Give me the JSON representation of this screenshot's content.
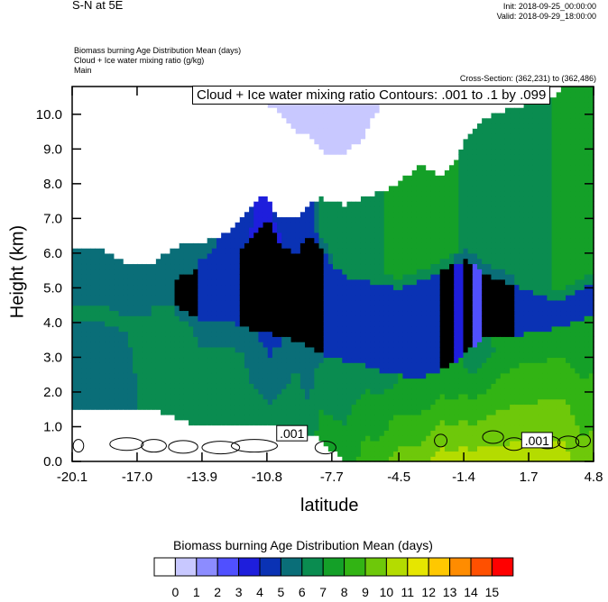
{
  "header": {
    "title": "S-N at 5E",
    "init": "Init: 2018-09-25_00:00:00",
    "valid": "Valid: 2018-09-29_18:00:00",
    "field1": "Biomass burning Age Distribution Mean   (days)",
    "field2": "Cloud + Ice water mixing ratio   (g/kg)",
    "field3": "Main",
    "cross_section": "Cross-Section: (362,231) to (362,486)"
  },
  "chart_data": {
    "type": "heatmap",
    "title": "S-N at 5E",
    "xlabel": "latitude",
    "ylabel": "Height (km)",
    "xlim": [
      -20.1,
      4.8
    ],
    "ylim": [
      0.0,
      10.8
    ],
    "x_ticks": [
      "-20.1",
      "-17.0",
      "-13.9",
      "-10.8",
      "-7.7",
      "-4.5",
      "-1.4",
      "1.7",
      "4.8"
    ],
    "x_tick_values": [
      -20.1,
      -17.0,
      -13.9,
      -10.8,
      -7.7,
      -4.5,
      -1.4,
      1.7,
      4.8
    ],
    "y_ticks": [
      "0.0",
      "1.0",
      "2.0",
      "3.0",
      "4.0",
      "5.0",
      "6.0",
      "7.0",
      "8.0",
      "9.0",
      "10.0"
    ],
    "y_tick_values": [
      0,
      1,
      2,
      3,
      4,
      5,
      6,
      7,
      8,
      9,
      10
    ],
    "contour_info": "Cloud + Ice water mixing ratio Contours: .001 to .1 by .099",
    "contour_labels": [
      {
        "text": ".001",
        "lat": -9.6,
        "height": 0.8
      },
      {
        "text": ".001",
        "lat": 2.1,
        "height": 0.6
      }
    ],
    "colorbar": {
      "title": "Biomass burning Age Distribution Mean  (days)",
      "labels": [
        "0",
        "1",
        "2",
        "3",
        "4",
        "5",
        "6",
        "7",
        "8",
        "9",
        "10",
        "11",
        "12",
        "13",
        "14",
        "15"
      ],
      "colors": [
        "#ffffff",
        "#c8c8ff",
        "#8c8cff",
        "#5050ff",
        "#1e1edc",
        "#0a32b4",
        "#0a6e78",
        "#0a8c50",
        "#14a028",
        "#32b414",
        "#6ec80a",
        "#b4dc00",
        "#e6e600",
        "#ffc800",
        "#ff8c00",
        "#ff5000",
        "#ff0000"
      ]
    },
    "profiles": {
      "lat": [
        -20.1,
        -18.6,
        -17.5,
        -16.3,
        -15.2,
        -14.1,
        -13.0,
        -12.0,
        -11.2,
        -10.7,
        -10.2,
        -9.4,
        -8.8,
        -8.2,
        -7.7,
        -7.0,
        -6.1,
        -5.4,
        -4.5,
        -3.5,
        -2.5,
        -1.8,
        -1.4,
        -1.0,
        -0.6,
        0.0,
        1.0,
        1.7,
        2.6,
        3.4,
        4.2,
        4.8
      ],
      "base_age": [
        6,
        6,
        6,
        7,
        7,
        7,
        7,
        7,
        7,
        7,
        7,
        7,
        7,
        8,
        8,
        8,
        9,
        9,
        10,
        10,
        11,
        11,
        11,
        11,
        11,
        11,
        11,
        11,
        11,
        11,
        10,
        10
      ],
      "top_age": [
        5,
        6,
        6,
        6,
        6,
        6,
        5,
        5,
        4,
        4,
        5,
        5,
        5,
        7,
        8,
        8,
        8,
        8,
        9,
        9,
        9,
        9,
        8,
        8,
        8,
        8,
        8,
        8,
        8,
        9,
        9,
        9
      ],
      "floor_h": [
        1.5,
        1.5,
        1.5,
        1.5,
        1.3,
        1.0,
        1.0,
        1.0,
        1.0,
        1.0,
        1.0,
        1.0,
        0.8,
        0.6,
        0.3,
        0.0,
        0.0,
        0.0,
        0.0,
        0.0,
        0.0,
        0.0,
        0.0,
        0.0,
        0.0,
        0.0,
        0.0,
        0.0,
        0.0,
        0.0,
        0.0,
        0.0
      ],
      "layer_bottom": [
        4.5,
        4.5,
        4.2,
        4.2,
        4.2,
        3.8,
        3.8,
        3.6,
        3.4,
        3.4,
        3.3,
        3.2,
        3.0,
        2.8,
        2.7,
        2.6,
        2.5,
        2.3,
        2.2,
        2.1,
        2.3,
        2.6,
        2.8,
        3.0,
        3.2,
        3.3,
        3.3,
        3.4,
        3.5,
        3.6,
        3.8,
        4.0
      ],
      "layer_top": [
        5.8,
        5.8,
        5.6,
        5.6,
        5.6,
        5.8,
        6.2,
        6.4,
        7.0,
        7.3,
        6.6,
        6.3,
        6.8,
        6.4,
        6.0,
        5.6,
        5.5,
        5.4,
        5.3,
        5.5,
        5.8,
        6.0,
        6.1,
        6.0,
        5.8,
        5.6,
        5.4,
        5.2,
        5.0,
        5.0,
        5.3,
        5.5
      ],
      "layer_age": [
        6,
        6,
        6,
        6,
        6,
        5,
        5,
        5,
        4,
        3,
        4,
        5,
        4,
        5,
        5,
        5,
        5,
        5,
        5,
        5,
        5,
        4,
        4,
        3,
        3,
        4,
        5,
        5,
        5,
        5,
        5,
        5
      ],
      "cloud_bottom": [
        6.2,
        6.1,
        5.7,
        5.7,
        6.2,
        6.3,
        6.5,
        7.0,
        7.6,
        7.6,
        7.0,
        7.0,
        7.4,
        7.6,
        7.5,
        7.4,
        7.6,
        7.8,
        8.0,
        8.6,
        8.2,
        8.7,
        9.2,
        9.6,
        9.8,
        10.0,
        10.2,
        10.3,
        10.4,
        10.8,
        10.8,
        10.8
      ],
      "purple_top": [
        10.8,
        10.8,
        10.8,
        10.8,
        10.8,
        10.8,
        10.8,
        10.8,
        10.6,
        10.2,
        10.1,
        9.5,
        9.4,
        9.0,
        8.8,
        8.9,
        9.4,
        10.3,
        10.8,
        10.8,
        10.8,
        10.8,
        10.8,
        10.8,
        10.8,
        10.8,
        10.8,
        10.8,
        10.8,
        10.8,
        10.8,
        10.8
      ]
    }
  }
}
